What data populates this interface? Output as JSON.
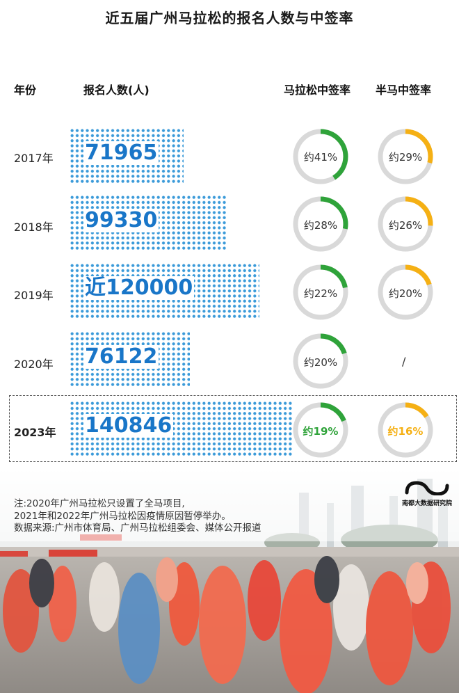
{
  "title": "近五届广州马拉松的报名人数与中签率",
  "headers": {
    "year": "年份",
    "registrants": "报名人数(人)",
    "marathon_rate": "马拉松中签率",
    "half_rate": "半马中签率"
  },
  "rows": [
    {
      "year": "2017年",
      "value_text": "71965",
      "marathon": "约41%",
      "half": "约29%"
    },
    {
      "year": "2018年",
      "value_text": "99330",
      "marathon": "约28%",
      "half": "约26%"
    },
    {
      "year": "2019年",
      "value_text": "近120000",
      "marathon": "约22%",
      "half": "约20%"
    },
    {
      "year": "2020年",
      "value_text": "76122",
      "marathon": "约20%",
      "half": "/"
    },
    {
      "year": "2023年",
      "value_text": "140846",
      "marathon": "约19%",
      "half": "约16%"
    }
  ],
  "chart_data": {
    "type": "bar",
    "categories": [
      "2017年",
      "2018年",
      "2019年",
      "2020年",
      "2023年"
    ],
    "series": [
      {
        "name": "报名人数(人)",
        "values": [
          71965,
          99330,
          120000,
          76122,
          140846
        ]
      },
      {
        "name": "马拉松中签率",
        "values": [
          41,
          28,
          22,
          20,
          19
        ]
      },
      {
        "name": "半马中签率",
        "values": [
          29,
          26,
          20,
          null,
          16
        ]
      }
    ],
    "highlight": "2023年"
  },
  "colors": {
    "dots": "#3a9ad9",
    "value_text": "#1976c8",
    "marathon_ring": "#2fa33a",
    "half_ring": "#f5b014",
    "ring_track": "#d9d9d9"
  },
  "notes": {
    "line1": "注:2020年广州马拉松只设置了全马项目,",
    "line2": "2021年和2022年广州马拉松因疫情原因暂停举办。",
    "line3": "数据来源:广州市体育局、广州马拉松组委会、媒体公开报道"
  },
  "logo_text": "南都大数据研究院"
}
